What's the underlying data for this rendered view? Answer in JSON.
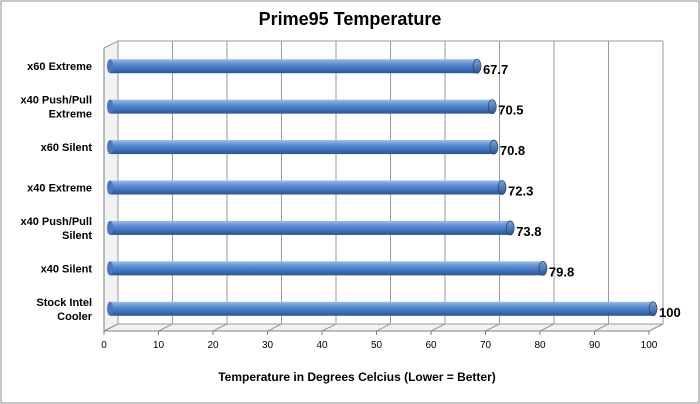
{
  "chart_data": {
    "type": "bar",
    "orientation": "horizontal",
    "title": "Prime95 Temperature",
    "xlabel": "Temperature in Degrees Celcius (Lower = Better)",
    "ylabel": "",
    "xlim": [
      0,
      100
    ],
    "ticks": [
      0,
      10,
      20,
      30,
      40,
      50,
      60,
      70,
      80,
      90,
      100
    ],
    "grid": true,
    "legend": "none",
    "bar_color": "#4F81BD",
    "categories": [
      [
        "x60 Extreme"
      ],
      [
        "x40 Push/Pull",
        "Extreme"
      ],
      [
        "x60 Silent"
      ],
      [
        "x40 Extreme"
      ],
      [
        "x40 Push/Pull",
        "Silent"
      ],
      [
        "x40 Silent"
      ],
      [
        "Stock Intel",
        "Cooler"
      ]
    ],
    "values": [
      67.7,
      70.5,
      70.8,
      72.3,
      73.8,
      79.8,
      100
    ],
    "value_labels": [
      "67.7",
      "70.5",
      "70.8",
      "72.3",
      "73.8",
      "79.8",
      "100"
    ]
  }
}
